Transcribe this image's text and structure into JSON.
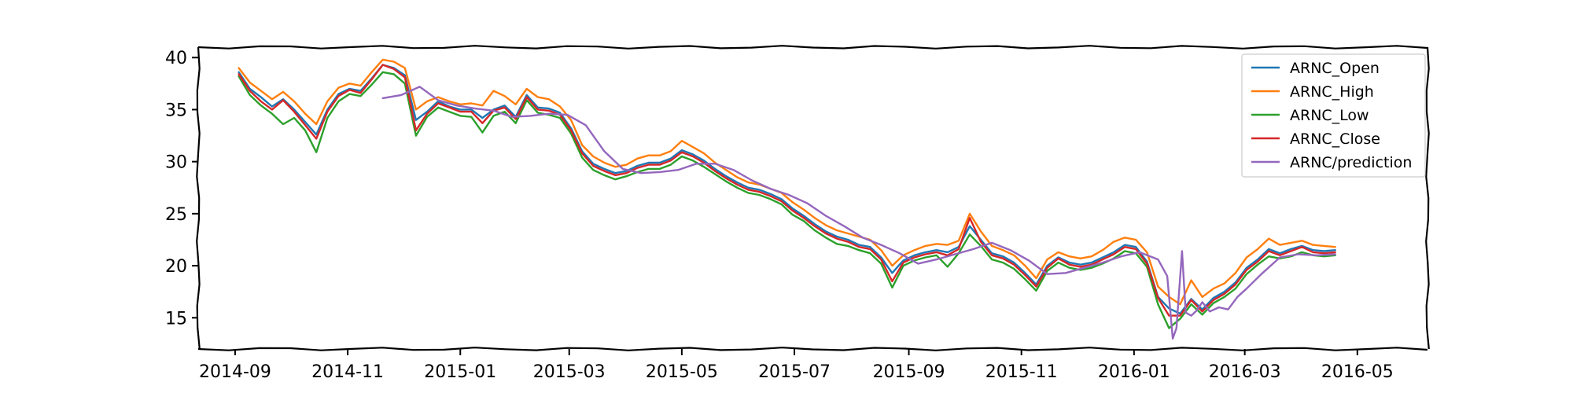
{
  "chart_data": {
    "type": "line",
    "title": "",
    "xlabel": "",
    "ylabel": "",
    "grid": false,
    "legend_position": "top-right",
    "xlim": [
      "2014-08-12",
      "2016-06-08"
    ],
    "ylim": [
      12,
      41
    ],
    "x_ticks": [
      "2014-09",
      "2014-11",
      "2015-01",
      "2015-03",
      "2015-05",
      "2015-07",
      "2015-09",
      "2015-11",
      "2016-01",
      "2016-03",
      "2016-05"
    ],
    "y_ticks": [
      15,
      20,
      25,
      30,
      35,
      40
    ],
    "series": [
      {
        "name": "ARNC_Open",
        "color": "#1f77b4",
        "x": [
          "2014-09-03",
          "2014-09-09",
          "2014-09-15",
          "2014-09-21",
          "2014-09-27",
          "2014-10-03",
          "2014-10-09",
          "2014-10-15",
          "2014-10-21",
          "2014-10-27",
          "2014-11-02",
          "2014-11-08",
          "2014-11-14",
          "2014-11-20",
          "2014-11-26",
          "2014-12-02",
          "2014-12-08",
          "2014-12-14",
          "2014-12-20",
          "2014-12-26",
          "2015-01-01",
          "2015-01-07",
          "2015-01-13",
          "2015-01-19",
          "2015-01-25",
          "2015-01-31",
          "2015-02-06",
          "2015-02-12",
          "2015-02-18",
          "2015-02-24",
          "2015-03-02",
          "2015-03-08",
          "2015-03-14",
          "2015-03-20",
          "2015-03-26",
          "2015-04-01",
          "2015-04-07",
          "2015-04-13",
          "2015-04-19",
          "2015-04-25",
          "2015-05-01",
          "2015-05-07",
          "2015-05-13",
          "2015-05-19",
          "2015-05-25",
          "2015-05-31",
          "2015-06-06",
          "2015-06-12",
          "2015-06-18",
          "2015-06-24",
          "2015-06-30",
          "2015-07-06",
          "2015-07-12",
          "2015-07-18",
          "2015-07-24",
          "2015-07-30",
          "2015-08-05",
          "2015-08-11",
          "2015-08-17",
          "2015-08-23",
          "2015-08-29",
          "2015-09-04",
          "2015-09-10",
          "2015-09-16",
          "2015-09-22",
          "2015-09-28",
          "2015-10-04",
          "2015-10-10",
          "2015-10-16",
          "2015-10-22",
          "2015-10-28",
          "2015-11-03",
          "2015-11-09",
          "2015-11-15",
          "2015-11-21",
          "2015-11-27",
          "2015-12-03",
          "2015-12-09",
          "2015-12-15",
          "2015-12-21",
          "2015-12-27",
          "2016-01-02",
          "2016-01-08",
          "2016-01-14",
          "2016-01-20",
          "2016-01-26",
          "2016-02-01",
          "2016-02-07",
          "2016-02-13",
          "2016-02-19",
          "2016-02-25",
          "2016-03-02",
          "2016-03-08",
          "2016-03-14",
          "2016-03-20",
          "2016-03-26",
          "2016-04-01",
          "2016-04-07",
          "2016-04-13",
          "2016-04-19"
        ],
        "values": [
          38.6,
          37.0,
          36.2,
          35.3,
          36.0,
          35.0,
          33.8,
          32.6,
          35.0,
          36.5,
          37.0,
          36.8,
          38.0,
          39.3,
          39.0,
          38.3,
          34.0,
          34.8,
          35.8,
          35.3,
          35.0,
          35.0,
          34.2,
          35.0,
          35.4,
          34.3,
          36.4,
          35.2,
          35.1,
          34.7,
          33.2,
          31.0,
          29.8,
          29.3,
          28.9,
          29.1,
          29.6,
          29.9,
          29.9,
          30.3,
          31.1,
          30.7,
          30.1,
          29.3,
          28.6,
          28.0,
          27.5,
          27.3,
          26.9,
          26.4,
          25.5,
          24.8,
          24.0,
          23.3,
          22.8,
          22.5,
          22.0,
          21.8,
          20.8,
          19.3,
          20.5,
          21.0,
          21.3,
          21.5,
          21.3,
          21.8,
          23.8,
          22.5,
          21.2,
          20.9,
          20.3,
          19.3,
          18.2,
          20.0,
          20.8,
          20.3,
          20.1,
          20.3,
          20.8,
          21.3,
          22.0,
          21.8,
          20.4,
          17.0,
          15.9,
          15.4,
          16.8,
          15.8,
          16.9,
          17.5,
          18.4,
          19.8,
          20.6,
          21.6,
          21.2,
          21.6,
          21.9,
          21.5,
          21.4,
          21.5
        ]
      },
      {
        "name": "ARNC_High",
        "color": "#ff7f0e",
        "x": [
          "2014-09-03",
          "2014-09-09",
          "2014-09-15",
          "2014-09-21",
          "2014-09-27",
          "2014-10-03",
          "2014-10-09",
          "2014-10-15",
          "2014-10-21",
          "2014-10-27",
          "2014-11-02",
          "2014-11-08",
          "2014-11-14",
          "2014-11-20",
          "2014-11-26",
          "2014-12-02",
          "2014-12-08",
          "2014-12-14",
          "2014-12-20",
          "2014-12-26",
          "2015-01-01",
          "2015-01-07",
          "2015-01-13",
          "2015-01-19",
          "2015-01-25",
          "2015-01-31",
          "2015-02-06",
          "2015-02-12",
          "2015-02-18",
          "2015-02-24",
          "2015-03-02",
          "2015-03-08",
          "2015-03-14",
          "2015-03-20",
          "2015-03-26",
          "2015-04-01",
          "2015-04-07",
          "2015-04-13",
          "2015-04-19",
          "2015-04-25",
          "2015-05-01",
          "2015-05-07",
          "2015-05-13",
          "2015-05-19",
          "2015-05-25",
          "2015-05-31",
          "2015-06-06",
          "2015-06-12",
          "2015-06-18",
          "2015-06-24",
          "2015-06-30",
          "2015-07-06",
          "2015-07-12",
          "2015-07-18",
          "2015-07-24",
          "2015-07-30",
          "2015-08-05",
          "2015-08-11",
          "2015-08-17",
          "2015-08-23",
          "2015-08-29",
          "2015-09-04",
          "2015-09-10",
          "2015-09-16",
          "2015-09-22",
          "2015-09-28",
          "2015-10-04",
          "2015-10-10",
          "2015-10-16",
          "2015-10-22",
          "2015-10-28",
          "2015-11-03",
          "2015-11-09",
          "2015-11-15",
          "2015-11-21",
          "2015-11-27",
          "2015-12-03",
          "2015-12-09",
          "2015-12-15",
          "2015-12-21",
          "2015-12-27",
          "2016-01-02",
          "2016-01-08",
          "2016-01-14",
          "2016-01-20",
          "2016-01-26",
          "2016-02-01",
          "2016-02-07",
          "2016-02-13",
          "2016-02-19",
          "2016-02-25",
          "2016-03-02",
          "2016-03-08",
          "2016-03-14",
          "2016-03-20",
          "2016-03-26",
          "2016-04-01",
          "2016-04-07",
          "2016-04-13",
          "2016-04-19"
        ],
        "values": [
          39.0,
          37.6,
          36.8,
          36.0,
          36.7,
          35.8,
          34.6,
          33.6,
          35.8,
          37.1,
          37.5,
          37.3,
          38.6,
          39.8,
          39.6,
          39.0,
          35.0,
          35.8,
          36.2,
          35.8,
          35.5,
          35.6,
          35.4,
          36.8,
          36.3,
          35.5,
          37.0,
          36.2,
          36.0,
          35.3,
          34.0,
          31.6,
          30.5,
          29.9,
          29.5,
          29.7,
          30.3,
          30.6,
          30.6,
          31.0,
          32.0,
          31.4,
          30.8,
          29.9,
          29.2,
          28.5,
          28.0,
          27.8,
          27.4,
          27.0,
          26.1,
          25.4,
          24.6,
          23.9,
          23.4,
          23.1,
          22.8,
          22.5,
          21.5,
          20.0,
          21.0,
          21.5,
          21.9,
          22.1,
          22.0,
          22.4,
          25.0,
          23.3,
          21.9,
          21.5,
          21.0,
          20.0,
          18.8,
          20.6,
          21.3,
          20.9,
          20.7,
          20.9,
          21.5,
          22.3,
          22.7,
          22.5,
          21.3,
          18.0,
          17.0,
          16.3,
          18.6,
          17.0,
          17.8,
          18.3,
          19.3,
          20.8,
          21.6,
          22.6,
          22.0,
          22.2,
          22.4,
          22.0,
          21.9,
          21.8
        ]
      },
      {
        "name": "ARNC_Low",
        "color": "#2ca02c",
        "x": [
          "2014-09-03",
          "2014-09-09",
          "2014-09-15",
          "2014-09-21",
          "2014-09-27",
          "2014-10-03",
          "2014-10-09",
          "2014-10-15",
          "2014-10-21",
          "2014-10-27",
          "2014-11-02",
          "2014-11-08",
          "2014-11-14",
          "2014-11-20",
          "2014-11-26",
          "2014-12-02",
          "2014-12-08",
          "2014-12-14",
          "2014-12-20",
          "2014-12-26",
          "2015-01-01",
          "2015-01-07",
          "2015-01-13",
          "2015-01-19",
          "2015-01-25",
          "2015-01-31",
          "2015-02-06",
          "2015-02-12",
          "2015-02-18",
          "2015-02-24",
          "2015-03-02",
          "2015-03-08",
          "2015-03-14",
          "2015-03-20",
          "2015-03-26",
          "2015-04-01",
          "2015-04-07",
          "2015-04-13",
          "2015-04-19",
          "2015-04-25",
          "2015-05-01",
          "2015-05-07",
          "2015-05-13",
          "2015-05-19",
          "2015-05-25",
          "2015-05-31",
          "2015-06-06",
          "2015-06-12",
          "2015-06-18",
          "2015-06-24",
          "2015-06-30",
          "2015-07-06",
          "2015-07-12",
          "2015-07-18",
          "2015-07-24",
          "2015-07-30",
          "2015-08-05",
          "2015-08-11",
          "2015-08-17",
          "2015-08-23",
          "2015-08-29",
          "2015-09-04",
          "2015-09-10",
          "2015-09-16",
          "2015-09-22",
          "2015-09-28",
          "2015-10-04",
          "2015-10-10",
          "2015-10-16",
          "2015-10-22",
          "2015-10-28",
          "2015-11-03",
          "2015-11-09",
          "2015-11-15",
          "2015-11-21",
          "2015-11-27",
          "2015-12-03",
          "2015-12-09",
          "2015-12-15",
          "2015-12-21",
          "2015-12-27",
          "2016-01-02",
          "2016-01-08",
          "2016-01-14",
          "2016-01-20",
          "2016-01-26",
          "2016-02-01",
          "2016-02-07",
          "2016-02-13",
          "2016-02-19",
          "2016-02-25",
          "2016-03-02",
          "2016-03-08",
          "2016-03-14",
          "2016-03-20",
          "2016-03-26",
          "2016-04-01",
          "2016-04-07",
          "2016-04-13",
          "2016-04-19"
        ],
        "values": [
          38.2,
          36.4,
          35.4,
          34.6,
          33.6,
          34.2,
          33.0,
          30.9,
          34.2,
          35.8,
          36.5,
          36.3,
          37.4,
          38.6,
          38.4,
          37.5,
          32.5,
          34.3,
          35.2,
          34.8,
          34.4,
          34.3,
          32.8,
          34.4,
          34.8,
          33.7,
          35.9,
          34.7,
          34.5,
          34.2,
          32.7,
          30.4,
          29.2,
          28.7,
          28.3,
          28.6,
          29.0,
          29.3,
          29.3,
          29.7,
          30.5,
          30.1,
          29.5,
          28.8,
          28.1,
          27.5,
          27.0,
          26.8,
          26.4,
          25.9,
          24.9,
          24.3,
          23.4,
          22.7,
          22.1,
          21.9,
          21.5,
          21.2,
          20.2,
          17.9,
          20.0,
          20.5,
          20.8,
          21.0,
          19.9,
          21.2,
          23.0,
          21.9,
          20.6,
          20.3,
          19.7,
          18.7,
          17.6,
          19.5,
          20.3,
          19.8,
          19.6,
          19.8,
          20.2,
          20.7,
          21.4,
          21.2,
          19.9,
          16.3,
          14.0,
          14.9,
          16.3,
          15.3,
          16.4,
          17.0,
          17.8,
          19.2,
          20.1,
          20.9,
          20.7,
          20.9,
          21.3,
          21.0,
          20.9,
          21.0
        ]
      },
      {
        "name": "ARNC_Close",
        "color": "#d62728",
        "x": [
          "2014-09-03",
          "2014-09-09",
          "2014-09-15",
          "2014-09-21",
          "2014-09-27",
          "2014-10-03",
          "2014-10-09",
          "2014-10-15",
          "2014-10-21",
          "2014-10-27",
          "2014-11-02",
          "2014-11-08",
          "2014-11-14",
          "2014-11-20",
          "2014-11-26",
          "2014-12-02",
          "2014-12-08",
          "2014-12-14",
          "2014-12-20",
          "2014-12-26",
          "2015-01-01",
          "2015-01-07",
          "2015-01-13",
          "2015-01-19",
          "2015-01-25",
          "2015-01-31",
          "2015-02-06",
          "2015-02-12",
          "2015-02-18",
          "2015-02-24",
          "2015-03-02",
          "2015-03-08",
          "2015-03-14",
          "2015-03-20",
          "2015-03-26",
          "2015-04-01",
          "2015-04-07",
          "2015-04-13",
          "2015-04-19",
          "2015-04-25",
          "2015-05-01",
          "2015-05-07",
          "2015-05-13",
          "2015-05-19",
          "2015-05-25",
          "2015-05-31",
          "2015-06-06",
          "2015-06-12",
          "2015-06-18",
          "2015-06-24",
          "2015-06-30",
          "2015-07-06",
          "2015-07-12",
          "2015-07-18",
          "2015-07-24",
          "2015-07-30",
          "2015-08-05",
          "2015-08-11",
          "2015-08-17",
          "2015-08-23",
          "2015-08-29",
          "2015-09-04",
          "2015-09-10",
          "2015-09-16",
          "2015-09-22",
          "2015-09-28",
          "2015-10-04",
          "2015-10-10",
          "2015-10-16",
          "2015-10-22",
          "2015-10-28",
          "2015-11-03",
          "2015-11-09",
          "2015-11-15",
          "2015-11-21",
          "2015-11-27",
          "2015-12-03",
          "2015-12-09",
          "2015-12-15",
          "2015-12-21",
          "2015-12-27",
          "2016-01-02",
          "2016-01-08",
          "2016-01-14",
          "2016-01-20",
          "2016-01-26",
          "2016-02-01",
          "2016-02-07",
          "2016-02-13",
          "2016-02-19",
          "2016-02-25",
          "2016-03-02",
          "2016-03-08",
          "2016-03-14",
          "2016-03-20",
          "2016-03-26",
          "2016-04-01",
          "2016-04-07",
          "2016-04-13",
          "2016-04-19"
        ],
        "values": [
          38.4,
          36.8,
          35.8,
          35.0,
          35.9,
          34.8,
          33.5,
          32.2,
          34.8,
          36.3,
          36.9,
          36.6,
          37.9,
          39.3,
          38.9,
          38.1,
          33.0,
          34.6,
          35.6,
          35.2,
          34.8,
          34.8,
          33.7,
          34.9,
          35.2,
          34.1,
          36.2,
          35.0,
          34.9,
          34.5,
          33.0,
          30.8,
          29.6,
          29.1,
          28.7,
          28.9,
          29.4,
          29.7,
          29.7,
          30.1,
          30.9,
          30.5,
          29.9,
          29.1,
          28.4,
          27.8,
          27.3,
          27.1,
          26.7,
          26.2,
          25.3,
          24.6,
          23.8,
          23.1,
          22.6,
          22.3,
          21.8,
          21.6,
          20.6,
          18.5,
          20.3,
          20.8,
          21.1,
          21.3,
          21.0,
          21.6,
          24.6,
          22.3,
          21.0,
          20.7,
          20.1,
          19.1,
          18.0,
          19.8,
          20.7,
          20.1,
          19.9,
          20.1,
          20.6,
          21.1,
          21.8,
          21.6,
          20.2,
          16.9,
          15.2,
          15.2,
          16.7,
          15.6,
          16.7,
          17.3,
          18.2,
          19.6,
          20.4,
          21.4,
          21.0,
          21.4,
          21.8,
          21.3,
          21.2,
          21.3
        ]
      },
      {
        "name": "ARNC/prediction",
        "color": "#9467bd",
        "x": [
          "2014-11-20",
          "2014-11-30",
          "2014-12-10",
          "2014-12-20",
          "2014-12-30",
          "2015-01-09",
          "2015-01-19",
          "2015-01-29",
          "2015-02-08",
          "2015-02-18",
          "2015-02-28",
          "2015-03-10",
          "2015-03-20",
          "2015-03-30",
          "2015-04-09",
          "2015-04-19",
          "2015-04-29",
          "2015-05-09",
          "2015-05-19",
          "2015-05-29",
          "2015-06-08",
          "2015-06-18",
          "2015-06-28",
          "2015-07-08",
          "2015-07-18",
          "2015-07-28",
          "2015-08-07",
          "2015-08-17",
          "2015-08-27",
          "2015-09-06",
          "2015-09-16",
          "2015-09-26",
          "2015-10-06",
          "2015-10-16",
          "2015-10-26",
          "2015-11-05",
          "2015-11-15",
          "2015-11-25",
          "2015-12-05",
          "2015-12-15",
          "2015-12-25",
          "2016-01-04",
          "2016-01-14",
          "2016-01-19",
          "2016-01-22",
          "2016-01-24",
          "2016-01-27",
          "2016-01-29",
          "2016-02-01",
          "2016-02-04",
          "2016-02-07",
          "2016-02-11",
          "2016-02-16",
          "2016-02-21",
          "2016-02-26",
          "2016-03-02",
          "2016-03-10",
          "2016-03-20",
          "2016-03-30",
          "2016-04-09",
          "2016-04-19"
        ],
        "values": [
          36.1,
          36.4,
          37.2,
          35.9,
          35.4,
          35.1,
          34.9,
          34.3,
          34.4,
          34.6,
          34.5,
          33.5,
          31.0,
          29.3,
          28.9,
          29.0,
          29.2,
          29.8,
          29.8,
          29.2,
          28.2,
          27.4,
          26.8,
          26.0,
          24.8,
          23.8,
          22.7,
          22.0,
          21.2,
          20.2,
          20.6,
          21.1,
          21.6,
          22.2,
          21.5,
          20.5,
          19.2,
          19.3,
          19.8,
          20.3,
          20.9,
          21.3,
          20.6,
          19.0,
          13.0,
          14.0,
          21.4,
          15.5,
          15.2,
          15.7,
          16.5,
          15.6,
          16.0,
          15.8,
          17.0,
          17.8,
          19.2,
          20.8,
          21.1,
          21.0,
          21.1
        ]
      }
    ]
  }
}
